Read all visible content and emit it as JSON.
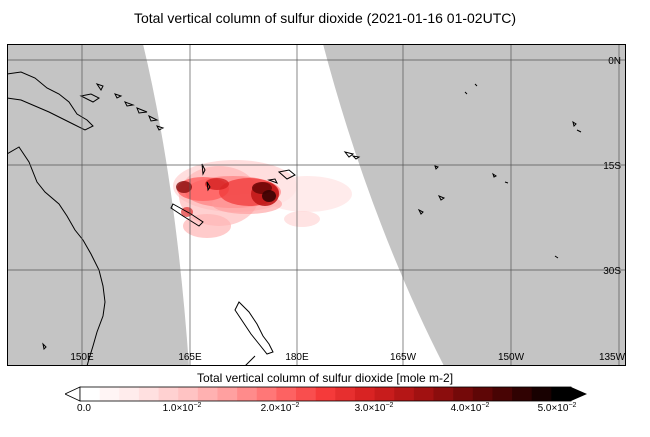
{
  "title": "Total vertical column of sulfur dioxide (2021-01-16 01-02UTC)",
  "map": {
    "lat_labels": [
      "0N",
      "15S",
      "30S"
    ],
    "lon_labels": [
      "150E",
      "165E",
      "180E",
      "165W",
      "150W",
      "135W"
    ],
    "colors": {
      "nodata": "#c4c4c4",
      "swath": "#ffffff",
      "land": "#000000"
    }
  },
  "colorbar": {
    "label": "Total vertical column of sulfur dioxide [mole m-2]",
    "ticks": [
      {
        "base": "0.0",
        "exp": ""
      },
      {
        "base": "1.0×10",
        "exp": "−2"
      },
      {
        "base": "2.0×10",
        "exp": "−2"
      },
      {
        "base": "3.0×10",
        "exp": "−2"
      },
      {
        "base": "4.0×10",
        "exp": "−2"
      },
      {
        "base": "5.0×10",
        "exp": "−2"
      }
    ],
    "range": [
      0.0,
      0.05
    ],
    "colors": [
      "#ffffff",
      "#ffe8e8",
      "#ffc6c6",
      "#ff9c9c",
      "#ff6a6a",
      "#f53a3a",
      "#d41f1f",
      "#a51212",
      "#700808",
      "#3a0202",
      "#000000"
    ]
  }
}
